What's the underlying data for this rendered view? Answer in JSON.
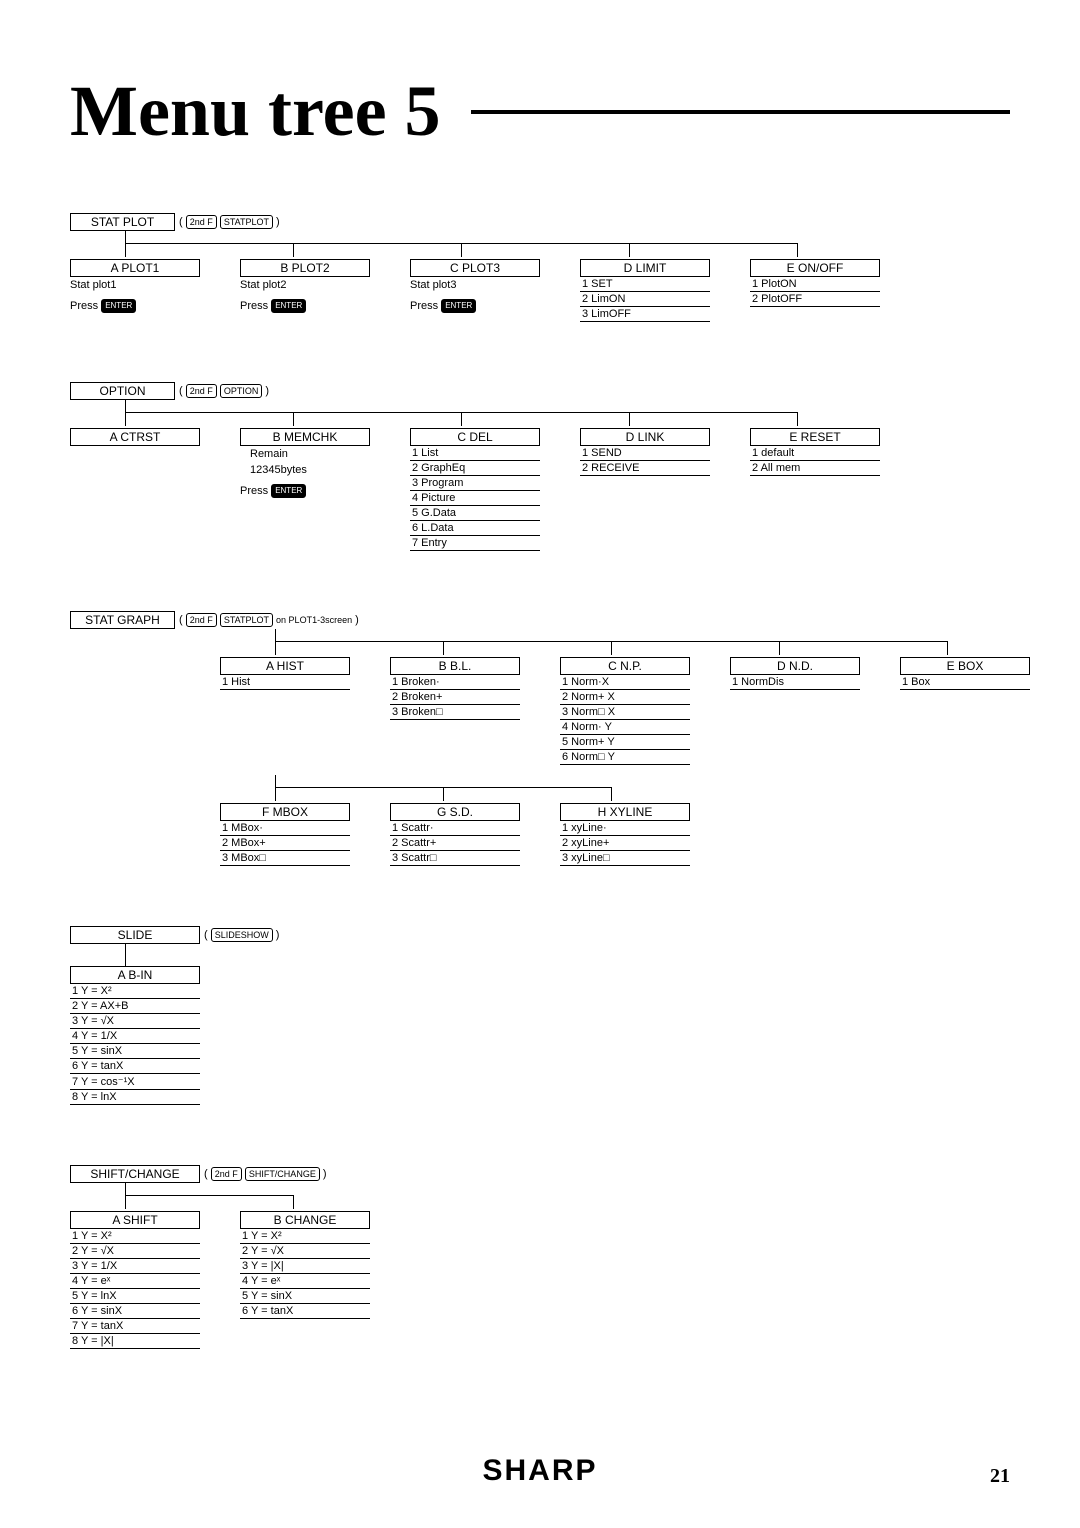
{
  "title": "Menu tree 5",
  "brand": "SHARP",
  "pageno": "21",
  "statplot": {
    "root": "STAT PLOT",
    "shortcut": [
      "2nd F",
      "STATPLOT"
    ],
    "cols": [
      {
        "heading": "A PLOT1",
        "sub": "Stat plot1",
        "press": [
          "Press",
          "ENTER"
        ]
      },
      {
        "heading": "B PLOT2",
        "sub": "Stat plot2",
        "press": [
          "Press",
          "ENTER"
        ]
      },
      {
        "heading": "C PLOT3",
        "sub": "Stat plot3",
        "press": [
          "Press",
          "ENTER"
        ]
      },
      {
        "heading": "D LIMIT",
        "items": [
          "1 SET",
          "2 LimON",
          "3 LimOFF"
        ]
      },
      {
        "heading": "E ON/OFF",
        "items": [
          "1 PlotON",
          "2 PlotOFF"
        ]
      }
    ]
  },
  "option": {
    "root": "OPTION",
    "shortcut": [
      "2nd F",
      "OPTION"
    ],
    "cols": [
      {
        "heading": "A CTRST"
      },
      {
        "heading": "B MEMCHK",
        "plain": [
          "Remain",
          "12345bytes"
        ],
        "press": [
          "Press",
          "ENTER"
        ]
      },
      {
        "heading": "C DEL",
        "items": [
          "1 List",
          "2 GraphEq",
          "3 Program",
          "4 Picture",
          "5 G.Data",
          "6 L.Data",
          "7 Entry"
        ]
      },
      {
        "heading": "D LINK",
        "items": [
          "1 SEND",
          "2 RECEIVE"
        ]
      },
      {
        "heading": "E RESET",
        "items": [
          "1 default",
          "2 All mem"
        ]
      }
    ]
  },
  "statgraph": {
    "root": "STAT GRAPH",
    "shortcut": [
      "2nd F",
      "STATPLOT"
    ],
    "shortcut_suffix": "on PLOT1-3screen",
    "row1": [
      {
        "heading": "A HIST",
        "items": [
          "1 Hist"
        ]
      },
      {
        "heading": "B B.L.",
        "items": [
          "1 Broken·",
          "2 Broken+",
          "3 Broken□"
        ]
      },
      {
        "heading": "C N.P.",
        "items": [
          "1 Norm·X",
          "2 Norm+  X",
          "3 Norm□  X",
          "4 Norm·  Y",
          "5 Norm+  Y",
          "6 Norm□  Y"
        ]
      },
      {
        "heading": "D N.D.",
        "items": [
          "1 NormDis"
        ]
      },
      {
        "heading": "E BOX",
        "items": [
          "1 Box"
        ]
      }
    ],
    "row2": [
      {
        "heading": "F MBOX",
        "items": [
          "1 MBox·",
          "2 MBox+",
          "3 MBox□"
        ]
      },
      {
        "heading": "G  S.D.",
        "items": [
          "1 Scattr·",
          "2 Scattr+",
          "3 Scattr□"
        ]
      },
      {
        "heading": "H XYLINE",
        "items": [
          "1 xyLine·",
          "2 xyLine+",
          "3 xyLine□"
        ]
      }
    ]
  },
  "slide": {
    "root": "SLIDE",
    "shortcut": [
      "SLIDESHOW"
    ],
    "cols": [
      {
        "heading": "A B-IN",
        "items": [
          "1 Y = X²",
          "2 Y = AX+B",
          "3 Y = √X",
          "4 Y = 1/X",
          "5 Y = sinX",
          "6 Y = tanX",
          "7 Y = cos⁻¹X",
          "8 Y = lnX"
        ]
      }
    ]
  },
  "shiftchange": {
    "root": "SHIFT/CHANGE",
    "shortcut": [
      "2nd F",
      "SHIFT/CHANGE"
    ],
    "cols": [
      {
        "heading": "A SHIFT",
        "items": [
          "1 Y = X²",
          "2 Y = √X",
          "3 Y = 1/X",
          "4 Y = eˣ",
          "5 Y = lnX",
          "6 Y = sinX",
          "7 Y = tanX",
          "8 Y = |X|"
        ]
      },
      {
        "heading": "B CHANGE",
        "items": [
          "1 Y = X²",
          "2 Y = √X",
          "3 Y = |X|",
          "4 Y = eˣ",
          "5 Y = sinX",
          "6 Y = tanX"
        ]
      }
    ]
  }
}
